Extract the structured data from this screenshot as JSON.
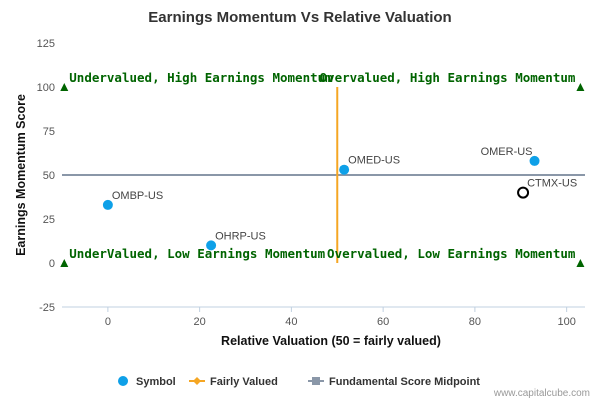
{
  "chart_data": {
    "type": "scatter",
    "title": "Earnings Momentum Vs Relative Valuation",
    "xlabel": "Relative Valuation (50 = fairly valued)",
    "ylabel": "Earnings Momentum Score",
    "xlim": [
      -10,
      104
    ],
    "ylim": [
      -25,
      125
    ],
    "xticks": [
      0,
      20,
      40,
      60,
      80,
      100
    ],
    "yticks": [
      -25,
      0,
      25,
      50,
      75,
      100,
      125
    ],
    "grid": false,
    "points": [
      {
        "label": "OMBP-US",
        "x": 0,
        "y": 33,
        "style": "filled",
        "label_pos": "right"
      },
      {
        "label": "OHRP-US",
        "x": 22.5,
        "y": 10,
        "style": "filled",
        "label_pos": "right"
      },
      {
        "label": "OMED-US",
        "x": 51.5,
        "y": 53,
        "style": "filled",
        "label_pos": "right"
      },
      {
        "label": "OMER-US",
        "x": 93,
        "y": 58,
        "style": "filled",
        "label_pos": "left"
      },
      {
        "label": "CTMX-US",
        "x": 90.5,
        "y": 40,
        "style": "hollow",
        "label_pos": "right"
      }
    ],
    "fairly_valued_line": {
      "x": 50,
      "y_range": [
        0,
        100
      ]
    },
    "midpoint_line": {
      "y": 50,
      "x_range": [
        -10,
        104
      ]
    },
    "markers": [
      {
        "x": -9.5,
        "y": 100
      },
      {
        "x": 103,
        "y": 100
      },
      {
        "x": -9.5,
        "y": 0
      },
      {
        "x": 103,
        "y": 0
      }
    ],
    "quadrant_labels": [
      {
        "text": "Undervalued, High Earnings Momentum",
        "x": -9.5,
        "y": 100,
        "anchor": "start"
      },
      {
        "text": "Overvalued, High Earnings Momentum",
        "x": 103,
        "y": 100,
        "anchor": "end"
      },
      {
        "text": "UnderValued, Low Earnings Momentum",
        "x": -9.5,
        "y": 0,
        "anchor": "start"
      },
      {
        "text": "Overvalued, Low Earnings Momentum",
        "x": 103,
        "y": 0,
        "anchor": "end"
      }
    ],
    "legend": {
      "position": "bottom",
      "items": [
        {
          "name": "Symbol",
          "kind": "dot"
        },
        {
          "name": "Fairly Valued",
          "kind": "line-diamond"
        },
        {
          "name": "Fundamental Score Midpoint",
          "kind": "line-square"
        }
      ]
    },
    "colors": {
      "symbol": "#0ea0e8",
      "fairly_valued": "#f5a623",
      "midpoint": "#8a97a8",
      "quadrant_text": "#006400",
      "marker": "#006400"
    }
  },
  "credit": "www.capitalcube.com"
}
